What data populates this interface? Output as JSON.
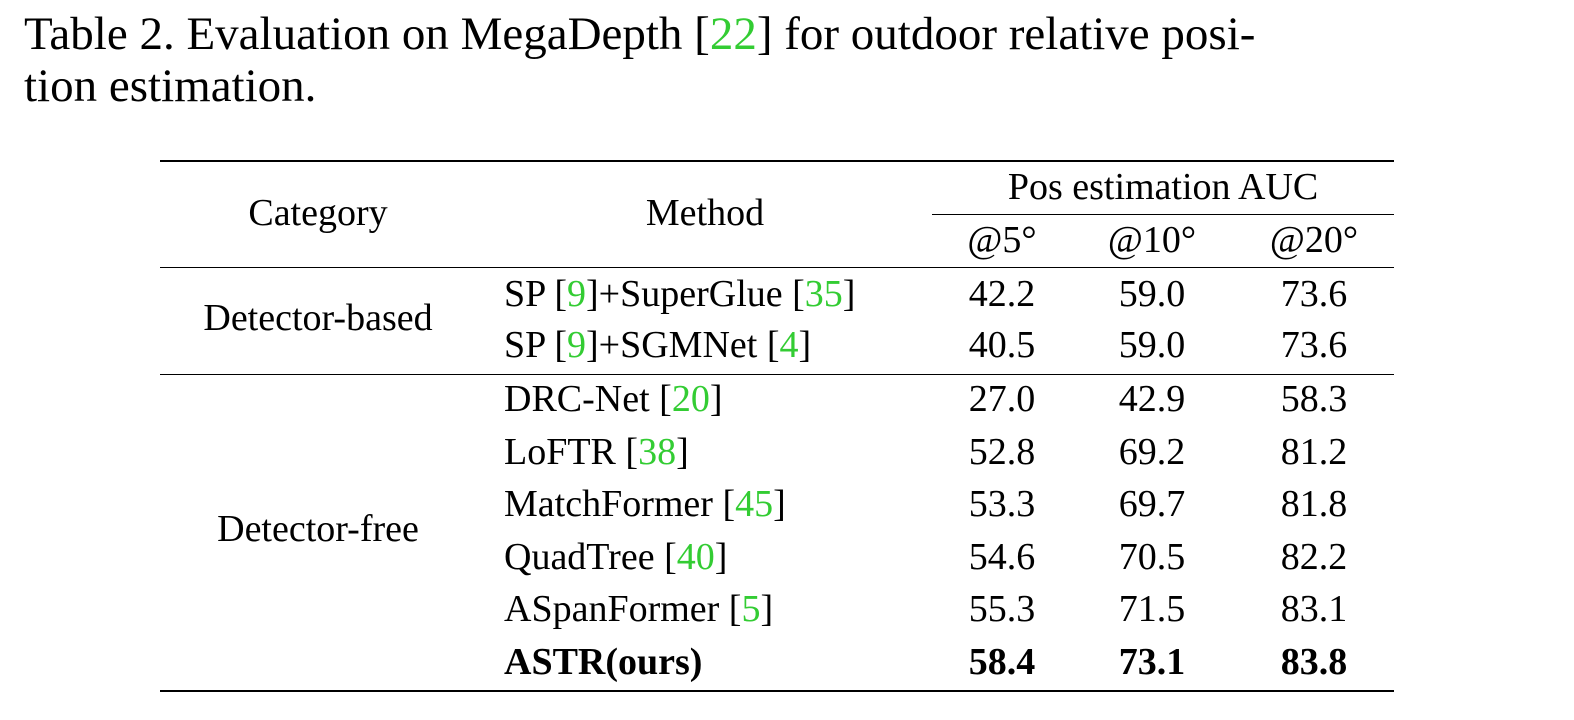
{
  "caption": {
    "line1_pre": "Table 2. Evaluation on MegaDepth [",
    "line1_cite": "22",
    "line1_post": "] for outdoor relative posi-",
    "line2": "tion estimation.",
    "cite_color": "#33cc33"
  },
  "table": {
    "headers": {
      "category": "Category",
      "method": "Method",
      "group": "Pos estimation AUC",
      "auc5": "@5°",
      "auc10": "@10°",
      "auc20": "@20°"
    },
    "groups": [
      {
        "category": "Detector-based"
      },
      {
        "category": "Detector-free"
      }
    ],
    "rows": [
      {
        "name_pre": "SP [",
        "c1": "9",
        "name_mid": "]+SuperGlue [",
        "c2": "35",
        "name_post": "]",
        "v5": "42.2",
        "v10": "59.0",
        "v20": "73.6"
      },
      {
        "name_pre": "SP [",
        "c1": "9",
        "name_mid": "]+SGMNet [",
        "c2": "4",
        "name_post": "]",
        "v5": "40.5",
        "v10": "59.0",
        "v20": "73.6"
      },
      {
        "name_pre": "DRC-Net [",
        "c1": "20",
        "name_post": "]",
        "v5": "27.0",
        "v10": "42.9",
        "v20": "58.3"
      },
      {
        "name_pre": "LoFTR [",
        "c1": "38",
        "name_post": "]",
        "v5": "52.8",
        "v10": "69.2",
        "v20": "81.2"
      },
      {
        "name_pre": "MatchFormer [",
        "c1": "45",
        "name_post": "]",
        "v5": "53.3",
        "v10": "69.7",
        "v20": "81.8"
      },
      {
        "name_pre": "QuadTree [",
        "c1": "40",
        "name_post": "]",
        "v5": "54.6",
        "v10": "70.5",
        "v20": "82.2"
      },
      {
        "name_pre": "ASpanFormer [",
        "c1": "5",
        "name_post": "]",
        "v5": "55.3",
        "v10": "71.5",
        "v20": "83.1"
      },
      {
        "name_pre": "ASTR(ours)",
        "v5": "58.4",
        "v10": "73.1",
        "v20": "83.8",
        "bold": true
      }
    ]
  }
}
